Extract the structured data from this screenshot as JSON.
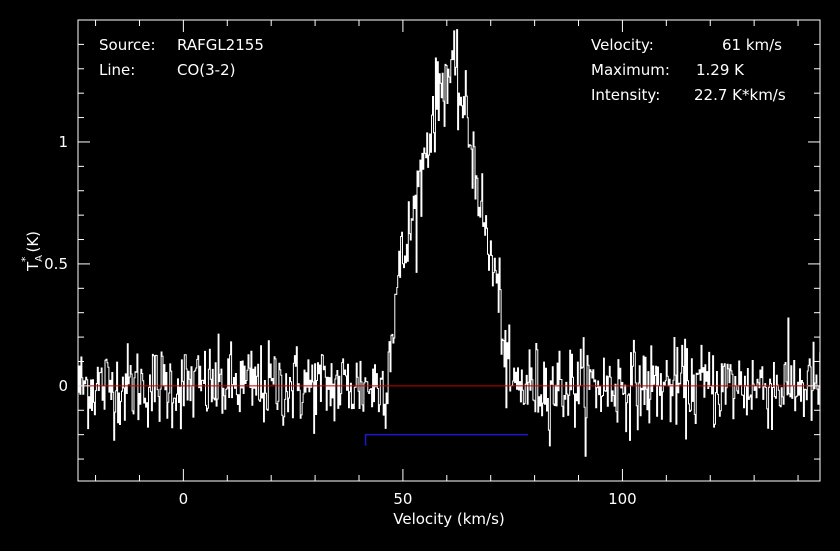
{
  "chart_data": {
    "type": "line",
    "xlabel": "Velocity (km/s)",
    "ylabel_main": "T",
    "ylabel_sup": "*",
    "ylabel_sub": "A",
    "ylabel_unit": "(K)",
    "xlim": [
      -24,
      145
    ],
    "ylim": [
      -0.39,
      1.5
    ],
    "x_ticks": [
      0,
      50,
      100
    ],
    "x_tick_labels": [
      "0",
      "50",
      "100"
    ],
    "y_ticks": [
      0,
      0.5,
      1
    ],
    "y_tick_labels": [
      "0",
      "0.5",
      "1"
    ],
    "baseline": 0,
    "baseline_color": "#cc0000",
    "window": {
      "from": 41.5,
      "to": 78.5,
      "level": -0.2,
      "color": "#1a1acc"
    },
    "line_color": "#ffffff",
    "noise_rms": 0.085,
    "series": [
      {
        "profile": [
          [
            -24,
            0
          ],
          [
            46,
            0
          ],
          [
            47.5,
            0.22
          ],
          [
            49,
            0.45
          ],
          [
            51,
            0.58
          ],
          [
            53,
            0.75
          ],
          [
            55,
            0.95
          ],
          [
            57,
            1.12
          ],
          [
            59,
            1.25
          ],
          [
            61,
            1.29
          ],
          [
            63,
            1.2
          ],
          [
            65,
            1.05
          ],
          [
            67,
            0.85
          ],
          [
            69,
            0.6
          ],
          [
            71,
            0.45
          ],
          [
            72.5,
            0.3
          ],
          [
            73.5,
            0.05
          ],
          [
            74.5,
            0
          ],
          [
            145,
            0
          ]
        ]
      }
    ]
  },
  "annotations": {
    "source_label": "Source:",
    "source_value": "RAFGL2155",
    "line_label": "Line:",
    "line_value": "CO(3-2)",
    "velocity_label": "Velocity:",
    "velocity_value": "61 km/s",
    "maximum_label": "Maximum:",
    "maximum_value": "1.29 K",
    "intensity_label": "Intensity:",
    "intensity_value": "22.7 K*km/s"
  }
}
